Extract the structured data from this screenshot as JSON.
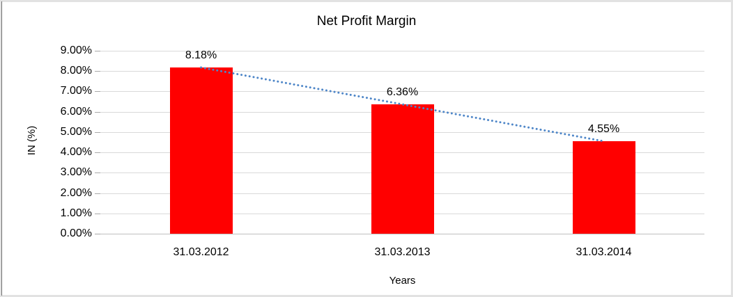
{
  "chart_data": {
    "type": "bar",
    "title": "Net Profit Margin",
    "xlabel": "Years",
    "ylabel": "IN (%)",
    "categories": [
      "31.03.2012",
      "31.03.2013",
      "31.03.2014"
    ],
    "values": [
      8.18,
      6.36,
      4.55
    ],
    "data_labels": [
      "8.18%",
      "6.36%",
      "4.55%"
    ],
    "ylim": [
      0,
      9
    ],
    "ytick_labels": [
      "0.00%",
      "1.00%",
      "2.00%",
      "3.00%",
      "4.00%",
      "5.00%",
      "6.00%",
      "7.00%",
      "8.00%",
      "9.00%"
    ],
    "grid": true,
    "legend": "none",
    "bar_color": "#ff0000",
    "gridline_color": "#d9d9d9",
    "trendline": {
      "type": "linear",
      "style": "dotted",
      "color": "#4e86c8",
      "start_value": 8.18,
      "end_value": 4.55
    }
  }
}
